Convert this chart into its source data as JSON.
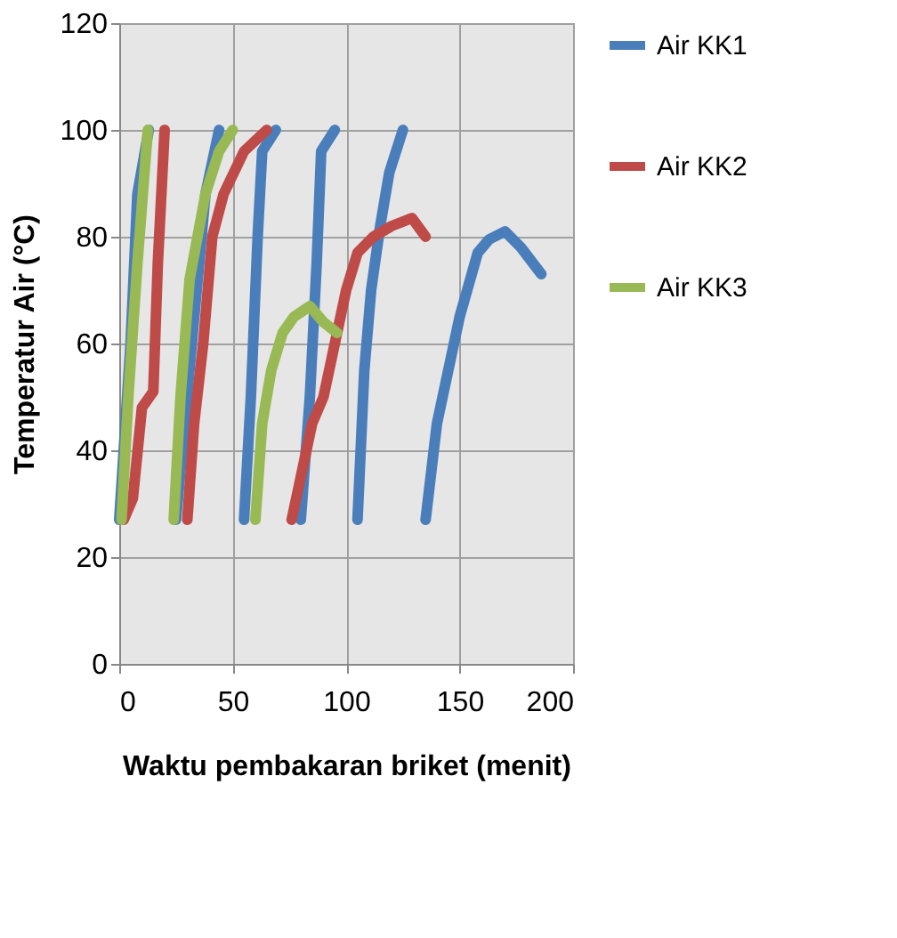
{
  "chart_data": {
    "type": "line",
    "xlabel": "Waktu pembakaran briket (menit)",
    "ylabel": "Temperatur Air (°C)",
    "xlim": [
      0,
      200
    ],
    "xticks": [
      0,
      50,
      100,
      150,
      200
    ],
    "ylim": [
      0,
      120
    ],
    "yticks": [
      0,
      20,
      40,
      60,
      80,
      100,
      120
    ],
    "grid": true,
    "legend": "right",
    "line_style": "solid",
    "marker": "none",
    "series": [
      {
        "name": "Air KK1",
        "color": "#4a7ebb",
        "x": [
          0,
          5,
          8,
          13,
          null,
          25,
          32,
          38,
          44,
          null,
          55,
          58,
          61,
          63,
          69,
          null,
          80,
          84,
          87,
          89,
          95,
          null,
          105,
          108,
          111,
          115,
          119,
          125,
          null,
          135,
          140,
          145,
          150,
          158,
          163,
          170,
          177,
          186
        ],
        "values": [
          27,
          60,
          88,
          100,
          null,
          27,
          60,
          88,
          100,
          null,
          27,
          50,
          80,
          96,
          100,
          null,
          27,
          50,
          75,
          96,
          100,
          null,
          27,
          55,
          70,
          82,
          92,
          100,
          null,
          27,
          45,
          55,
          65,
          77,
          79.5,
          81,
          78,
          73
        ]
      },
      {
        "name": "Air KK2",
        "color": "#be4b48",
        "x": [
          2,
          6,
          10,
          15,
          17,
          20,
          null,
          30,
          33,
          37,
          41,
          46,
          55,
          65,
          null,
          76,
          80,
          85,
          90,
          95,
          100,
          105,
          112,
          120,
          129,
          135
        ],
        "values": [
          27,
          31,
          48,
          51,
          75,
          100,
          null,
          27,
          45,
          60,
          80,
          88,
          96,
          100,
          null,
          27,
          35,
          45,
          50,
          60,
          70,
          77,
          80,
          82,
          83.5,
          80
        ]
      },
      {
        "name": "Air KK3",
        "color": "#98b954",
        "x": [
          1,
          4,
          8,
          12.6,
          null,
          24,
          27,
          31,
          38,
          44,
          50,
          null,
          60,
          63,
          67,
          72,
          77,
          84,
          90,
          96
        ],
        "values": [
          27,
          50,
          75,
          100,
          null,
          27,
          50,
          72,
          88,
          96,
          100,
          null,
          27,
          45,
          55,
          62,
          65,
          67,
          64,
          62
        ]
      }
    ]
  }
}
